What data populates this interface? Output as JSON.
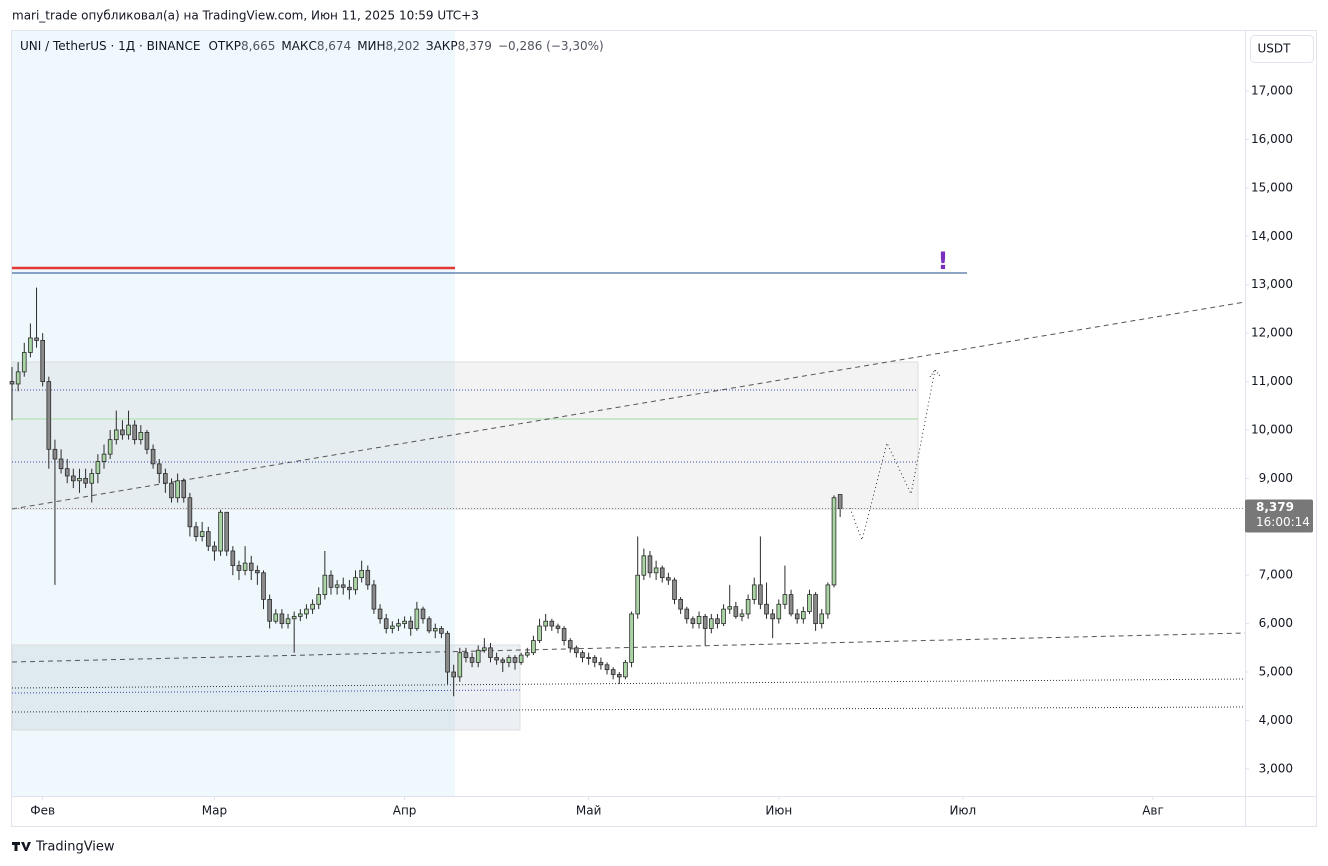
{
  "header": {
    "published": "mari_trade опубликовал(а) на TradingView.com, Июн 11, 2025 10:59 UTC+3",
    "symbol": "UNI / TetherUS · 1Д · BINANCE",
    "ohlc": [
      {
        "label": "ОТКР",
        "value": "8,665"
      },
      {
        "label": "МАКС",
        "value": "8,674"
      },
      {
        "label": "МИН",
        "value": "8,202"
      },
      {
        "label": "ЗАКР",
        "value": "8,379"
      }
    ],
    "change": "−0,286 (−3,30%)"
  },
  "footer": {
    "brand": "TradingView"
  },
  "chart_data": {
    "type": "candlestick",
    "currency": "USDT",
    "last_price": {
      "label": "8,379",
      "countdown": "16:00:14"
    },
    "up_color": "#a9d4a3",
    "down_color": "#8a8a8a",
    "border_color": "#2b2b2b",
    "grid": false,
    "xlim": [
      0,
      201
    ],
    "ylim": [
      2.44,
      18.24
    ],
    "xticks": [
      {
        "value": 5,
        "label": "Фев"
      },
      {
        "value": 33,
        "label": "Мар"
      },
      {
        "value": 64,
        "label": "Апр"
      },
      {
        "value": 94,
        "label": "Май"
      },
      {
        "value": 125,
        "label": "Июн"
      },
      {
        "value": 155,
        "label": "Июл"
      },
      {
        "value": 186,
        "label": "Авг"
      }
    ],
    "yticks": [
      {
        "value": 3,
        "label": "3,000"
      },
      {
        "value": 4,
        "label": "4,000"
      },
      {
        "value": 5,
        "label": "5,000"
      },
      {
        "value": 6,
        "label": "6,000"
      },
      {
        "value": 7,
        "label": "7,000"
      },
      {
        "value": 8,
        "label": "8,000"
      },
      {
        "value": 9,
        "label": "9,000"
      },
      {
        "value": 10,
        "label": "10,000"
      },
      {
        "value": 11,
        "label": "11,000"
      },
      {
        "value": 12,
        "label": "12,000"
      },
      {
        "value": 13,
        "label": "13,000"
      },
      {
        "value": 14,
        "label": "14,000"
      },
      {
        "value": 15,
        "label": "15,000"
      },
      {
        "value": 16,
        "label": "16,000"
      },
      {
        "value": 17,
        "label": "17,000"
      }
    ],
    "open": [
      11.0,
      10.95,
      11.2,
      11.6,
      11.9,
      11.85,
      11.0,
      9.6,
      9.4,
      9.2,
      9.05,
      8.95,
      9.0,
      8.9,
      9.1,
      9.35,
      9.5,
      9.8,
      10.0,
      9.9,
      10.1,
      9.8,
      9.95,
      9.6,
      9.3,
      9.1,
      8.9,
      8.6,
      8.95,
      8.6,
      8.0,
      7.8,
      7.9,
      7.6,
      7.5,
      8.3,
      7.5,
      7.2,
      7.1,
      7.25,
      7.1,
      7.05,
      6.5,
      6.05,
      6.2,
      6.0,
      6.1,
      6.15,
      6.2,
      6.3,
      6.4,
      6.6,
      7.0,
      6.75,
      6.8,
      6.75,
      6.7,
      6.95,
      7.1,
      6.8,
      6.3,
      6.1,
      5.9,
      5.95,
      6.0,
      6.05,
      5.9,
      6.3,
      6.1,
      5.85,
      5.9,
      5.8,
      5.0,
      4.9,
      5.4,
      5.3,
      5.2,
      5.45,
      5.5,
      5.3,
      5.25,
      5.2,
      5.3,
      5.2,
      5.35,
      5.4,
      5.65,
      5.95,
      6.05,
      5.95,
      5.9,
      5.65,
      5.5,
      5.4,
      5.3,
      5.3,
      5.2,
      5.15,
      5.05,
      4.95,
      4.9,
      5.2,
      6.2,
      7.0,
      7.4,
      7.05,
      7.15,
      6.95,
      6.9,
      6.5,
      6.3,
      6.1,
      6.0,
      6.15,
      5.9,
      6.1,
      6.0,
      6.3,
      6.35,
      6.15,
      6.2,
      6.5,
      6.8,
      6.4,
      6.2,
      6.1,
      6.4,
      6.6,
      6.2,
      6.1,
      6.25,
      6.6,
      6.0,
      6.2,
      6.8,
      8.665
    ],
    "high": [
      11.3,
      11.4,
      11.8,
      12.2,
      12.94,
      12.0,
      11.1,
      9.8,
      9.6,
      9.4,
      9.2,
      9.2,
      9.2,
      9.2,
      9.5,
      9.7,
      10.0,
      10.4,
      10.2,
      10.4,
      10.2,
      10.1,
      10.0,
      9.7,
      9.4,
      9.2,
      9.0,
      9.1,
      9.0,
      8.7,
      8.1,
      8.1,
      8.0,
      7.7,
      8.35,
      8.3,
      7.6,
      7.3,
      7.6,
      7.4,
      7.2,
      7.1,
      6.6,
      6.3,
      6.3,
      6.2,
      6.25,
      6.3,
      6.4,
      6.5,
      6.75,
      7.5,
      7.1,
      6.9,
      6.95,
      6.9,
      7.1,
      7.3,
      7.2,
      6.9,
      6.4,
      6.2,
      6.05,
      6.1,
      6.15,
      6.15,
      6.45,
      6.35,
      6.15,
      6.0,
      5.95,
      5.85,
      5.15,
      5.5,
      5.5,
      5.4,
      5.55,
      5.7,
      5.6,
      5.4,
      5.3,
      5.35,
      5.35,
      5.4,
      5.5,
      5.75,
      6.1,
      6.2,
      6.1,
      6.0,
      5.95,
      5.7,
      5.55,
      5.45,
      5.4,
      5.35,
      5.3,
      5.2,
      5.1,
      5.0,
      5.25,
      6.25,
      7.8,
      7.55,
      7.5,
      7.3,
      7.2,
      7.05,
      6.95,
      6.55,
      6.35,
      6.15,
      6.25,
      6.2,
      6.2,
      6.2,
      6.4,
      6.8,
      6.45,
      6.3,
      6.6,
      6.95,
      7.8,
      6.85,
      6.3,
      6.5,
      7.2,
      6.7,
      6.3,
      6.35,
      6.7,
      6.65,
      6.3,
      6.85,
      8.65,
      8.674
    ],
    "low": [
      10.2,
      10.8,
      11.1,
      11.5,
      11.7,
      10.9,
      9.2,
      6.8,
      9.1,
      8.9,
      8.8,
      8.7,
      8.8,
      8.5,
      8.9,
      9.2,
      9.4,
      9.7,
      9.8,
      9.8,
      9.7,
      9.7,
      9.5,
      9.2,
      8.9,
      8.7,
      8.5,
      8.5,
      8.5,
      7.8,
      7.7,
      7.7,
      7.5,
      7.3,
      7.4,
      7.4,
      7.0,
      6.9,
      7.0,
      6.9,
      6.8,
      6.3,
      5.9,
      6.0,
      5.9,
      5.9,
      5.4,
      6.05,
      6.1,
      6.2,
      6.3,
      6.5,
      6.6,
      6.6,
      6.6,
      6.5,
      6.6,
      6.85,
      6.7,
      6.2,
      6.0,
      5.8,
      5.8,
      5.85,
      5.9,
      5.75,
      5.85,
      6.0,
      5.8,
      5.7,
      5.7,
      4.75,
      4.5,
      4.8,
      5.2,
      5.1,
      5.1,
      5.4,
      5.2,
      5.15,
      5.0,
      5.1,
      5.05,
      5.15,
      5.3,
      5.35,
      5.6,
      5.85,
      5.85,
      5.8,
      5.55,
      5.4,
      5.3,
      5.2,
      5.15,
      5.1,
      5.05,
      4.95,
      4.85,
      4.75,
      4.85,
      5.1,
      6.1,
      6.9,
      6.95,
      6.9,
      6.85,
      6.8,
      6.4,
      6.2,
      6.0,
      5.9,
      5.9,
      5.55,
      5.8,
      5.9,
      5.95,
      6.2,
      6.1,
      6.05,
      6.1,
      6.4,
      6.3,
      6.1,
      5.7,
      6.0,
      6.3,
      6.15,
      6.0,
      6.0,
      6.2,
      5.85,
      5.9,
      6.1,
      6.75,
      8.202
    ],
    "close": [
      10.95,
      11.2,
      11.6,
      11.9,
      11.85,
      11.0,
      9.6,
      9.4,
      9.2,
      9.05,
      8.95,
      9.0,
      8.9,
      9.1,
      9.35,
      9.5,
      9.8,
      10.0,
      9.9,
      10.1,
      9.8,
      9.95,
      9.6,
      9.3,
      9.1,
      8.9,
      8.6,
      8.95,
      8.6,
      8.0,
      7.8,
      7.9,
      7.6,
      7.5,
      8.3,
      7.5,
      7.2,
      7.1,
      7.25,
      7.1,
      7.05,
      6.5,
      6.05,
      6.2,
      6.0,
      6.1,
      6.15,
      6.2,
      6.3,
      6.4,
      6.6,
      7.0,
      6.75,
      6.8,
      6.75,
      6.7,
      6.95,
      7.1,
      6.8,
      6.3,
      6.1,
      5.9,
      5.95,
      6.0,
      6.05,
      5.9,
      6.3,
      6.1,
      5.85,
      5.9,
      5.8,
      5.0,
      4.9,
      5.4,
      5.3,
      5.2,
      5.45,
      5.5,
      5.3,
      5.25,
      5.2,
      5.3,
      5.2,
      5.35,
      5.4,
      5.65,
      5.95,
      6.05,
      5.95,
      5.9,
      5.65,
      5.5,
      5.4,
      5.3,
      5.3,
      5.2,
      5.15,
      5.05,
      4.95,
      4.9,
      5.2,
      6.2,
      7.0,
      7.4,
      7.05,
      7.15,
      6.95,
      6.9,
      6.5,
      6.3,
      6.1,
      6.0,
      6.15,
      5.9,
      6.1,
      6.0,
      6.3,
      6.35,
      6.15,
      6.2,
      6.5,
      6.8,
      6.4,
      6.2,
      6.1,
      6.4,
      6.6,
      6.2,
      6.1,
      6.25,
      6.6,
      6.0,
      6.2,
      6.8,
      8.6,
      8.379
    ]
  }
}
